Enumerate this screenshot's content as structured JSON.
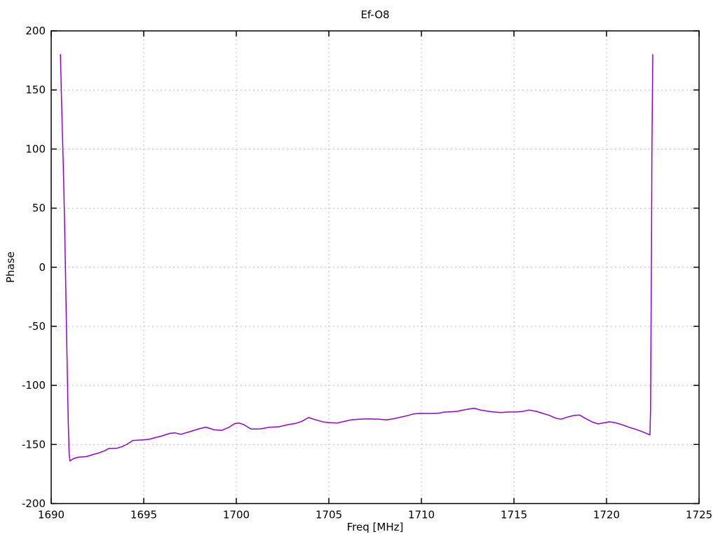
{
  "chart_data": {
    "type": "line",
    "title": "Ef-O8",
    "xlabel": "Freq [MHz]",
    "ylabel": "Phase",
    "xlim": [
      1690,
      1725
    ],
    "ylim": [
      -200,
      200
    ],
    "xticks": [
      1690,
      1695,
      1700,
      1705,
      1710,
      1715,
      1720,
      1725
    ],
    "yticks": [
      -200,
      -150,
      -100,
      -50,
      0,
      50,
      100,
      150,
      200
    ],
    "grid": true,
    "legend_position": "none",
    "background_color": "#ffffff",
    "grid_color": "#b8b8b8",
    "border_color": "#000000",
    "series": [
      {
        "name": "Phase",
        "color": "#9400d3",
        "points": [
          [
            1690.5,
            180
          ],
          [
            1690.53,
            160
          ],
          [
            1690.57,
            135
          ],
          [
            1690.62,
            105
          ],
          [
            1690.67,
            75
          ],
          [
            1690.72,
            40
          ],
          [
            1690.77,
            0
          ],
          [
            1690.82,
            -45
          ],
          [
            1690.87,
            -90
          ],
          [
            1690.92,
            -130
          ],
          [
            1690.97,
            -158
          ],
          [
            1691.02,
            -164
          ],
          [
            1691.2,
            -162
          ],
          [
            1691.45,
            -160.8
          ],
          [
            1691.9,
            -160.2
          ],
          [
            1692.2,
            -158.8
          ],
          [
            1692.6,
            -157.0
          ],
          [
            1692.9,
            -155.3
          ],
          [
            1693.1,
            -153.5
          ],
          [
            1693.55,
            -153.2
          ],
          [
            1693.8,
            -152.0
          ],
          [
            1694.1,
            -149.8
          ],
          [
            1694.4,
            -146.6
          ],
          [
            1694.9,
            -146.2
          ],
          [
            1695.3,
            -145.6
          ],
          [
            1695.7,
            -143.9
          ],
          [
            1696.0,
            -142.7
          ],
          [
            1696.4,
            -140.6
          ],
          [
            1696.7,
            -140.2
          ],
          [
            1697.0,
            -141.4
          ],
          [
            1697.5,
            -139.1
          ],
          [
            1698.0,
            -136.7
          ],
          [
            1698.35,
            -135.3
          ],
          [
            1698.8,
            -137.6
          ],
          [
            1699.2,
            -138.1
          ],
          [
            1699.6,
            -135.5
          ],
          [
            1699.9,
            -132.4
          ],
          [
            1700.15,
            -131.9
          ],
          [
            1700.4,
            -133.2
          ],
          [
            1700.8,
            -137.0
          ],
          [
            1701.3,
            -136.8
          ],
          [
            1701.8,
            -135.4
          ],
          [
            1702.3,
            -135.0
          ],
          [
            1702.8,
            -133.2
          ],
          [
            1703.2,
            -132.2
          ],
          [
            1703.55,
            -130.4
          ],
          [
            1703.9,
            -127.2
          ],
          [
            1704.3,
            -129.2
          ],
          [
            1704.7,
            -130.9
          ],
          [
            1705.1,
            -131.6
          ],
          [
            1705.45,
            -131.8
          ],
          [
            1705.8,
            -130.6
          ],
          [
            1706.2,
            -129.2
          ],
          [
            1706.6,
            -128.6
          ],
          [
            1707.2,
            -128.4
          ],
          [
            1707.7,
            -128.6
          ],
          [
            1708.1,
            -129.2
          ],
          [
            1708.5,
            -128.2
          ],
          [
            1708.9,
            -126.8
          ],
          [
            1709.25,
            -125.6
          ],
          [
            1709.6,
            -124.1
          ],
          [
            1709.9,
            -123.7
          ],
          [
            1710.5,
            -123.8
          ],
          [
            1710.9,
            -123.6
          ],
          [
            1711.2,
            -122.7
          ],
          [
            1711.6,
            -122.3
          ],
          [
            1711.95,
            -121.9
          ],
          [
            1712.3,
            -120.7
          ],
          [
            1712.85,
            -119.3
          ],
          [
            1713.2,
            -120.9
          ],
          [
            1713.55,
            -121.8
          ],
          [
            1713.9,
            -122.5
          ],
          [
            1714.3,
            -122.9
          ],
          [
            1714.7,
            -122.5
          ],
          [
            1715.1,
            -122.5
          ],
          [
            1715.45,
            -122.1
          ],
          [
            1715.8,
            -120.9
          ],
          [
            1716.2,
            -121.9
          ],
          [
            1716.55,
            -123.7
          ],
          [
            1716.9,
            -125.3
          ],
          [
            1717.25,
            -127.7
          ],
          [
            1717.55,
            -128.6
          ],
          [
            1717.9,
            -126.8
          ],
          [
            1718.25,
            -125.4
          ],
          [
            1718.55,
            -125.1
          ],
          [
            1718.9,
            -128.3
          ],
          [
            1719.25,
            -131.1
          ],
          [
            1719.55,
            -132.6
          ],
          [
            1719.9,
            -131.6
          ],
          [
            1720.15,
            -130.8
          ],
          [
            1720.5,
            -131.7
          ],
          [
            1720.9,
            -133.6
          ],
          [
            1721.25,
            -135.6
          ],
          [
            1721.6,
            -137.2
          ],
          [
            1721.95,
            -139.3
          ],
          [
            1722.25,
            -141.3
          ],
          [
            1722.35,
            -141.8
          ],
          [
            1722.38,
            -120
          ],
          [
            1722.4,
            -60
          ],
          [
            1722.43,
            20
          ],
          [
            1722.45,
            95
          ],
          [
            1722.48,
            150
          ],
          [
            1722.5,
            180
          ]
        ]
      }
    ]
  }
}
